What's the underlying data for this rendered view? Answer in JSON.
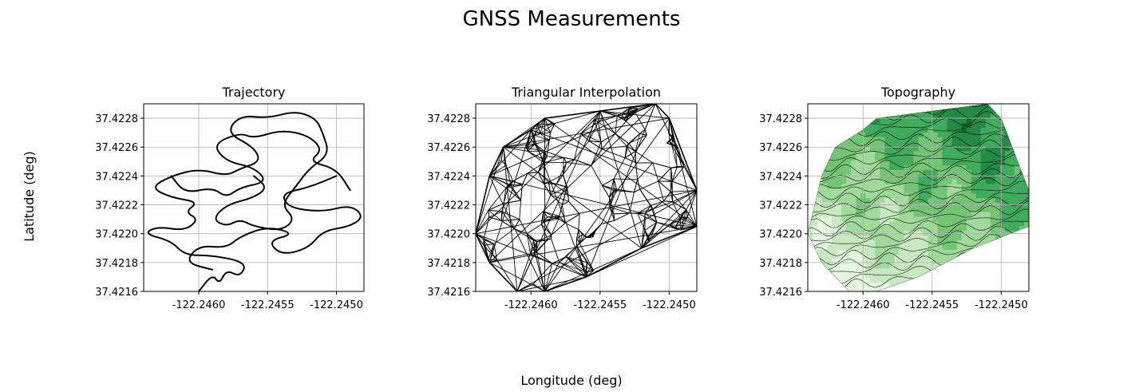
{
  "figure": {
    "suptitle": "GNSS Measurements",
    "xlabel": "Longitude (deg)",
    "ylabel": "Latitude (deg)"
  },
  "chart_data": [
    {
      "type": "line",
      "title": "Trajectory",
      "xlim": [
        -122.2464,
        -122.2448
      ],
      "ylim": [
        37.4216,
        37.4229
      ],
      "xticks": [
        -122.246,
        -122.2455,
        -122.245
      ],
      "yticks": [
        37.4216,
        37.4218,
        37.422,
        37.4222,
        37.4224,
        37.4226,
        37.4228
      ],
      "xtick_labels": [
        "-122.2460",
        "-122.2455",
        "-122.2450"
      ],
      "ytick_labels": [
        "37.4216",
        "37.4218",
        "37.4220",
        "37.4222",
        "37.4224",
        "37.4226",
        "37.4228"
      ],
      "grid": true,
      "series": [
        {
          "color": "#000000",
          "points": [
            [
              -122.246,
              37.4216
            ],
            [
              -122.2459,
              37.42172
            ],
            [
              -122.24585,
              37.42165
            ],
            [
              -122.2458,
              37.42175
            ],
            [
              -122.2457,
              37.4217
            ],
            [
              -122.24565,
              37.4218
            ],
            [
              -122.2459,
              37.42185
            ],
            [
              -122.2461,
              37.42185
            ],
            [
              -122.2462,
              37.42195
            ],
            [
              -122.2464,
              37.422
            ],
            [
              -122.2463,
              37.42205
            ],
            [
              -122.2461,
              37.42202
            ],
            [
              -122.246,
              37.4221
            ],
            [
              -122.2461,
              37.42215
            ],
            [
              -122.246,
              37.42222
            ],
            [
              -122.2462,
              37.42225
            ],
            [
              -122.24635,
              37.42232
            ],
            [
              -122.2462,
              37.4224
            ],
            [
              -122.246,
              37.42245
            ],
            [
              -122.2458,
              37.4224
            ],
            [
              -122.2457,
              37.42245
            ],
            [
              -122.24555,
              37.4225
            ],
            [
              -122.2456,
              37.4226
            ],
            [
              -122.2458,
              37.4227
            ],
            [
              -122.2457,
              37.42282
            ],
            [
              -122.2455,
              37.4228
            ],
            [
              -122.2453,
              37.42285
            ],
            [
              -122.24515,
              37.4228
            ],
            [
              -122.2451,
              37.4227
            ],
            [
              -122.24505,
              37.42255
            ],
            [
              -122.2452,
              37.42245
            ],
            [
              -122.2453,
              37.42232
            ],
            [
              -122.2454,
              37.4222
            ],
            [
              -122.2453,
              37.4221
            ],
            [
              -122.2454,
              37.42202
            ],
            [
              -122.2456,
              37.42205
            ],
            [
              -122.2457,
              37.4221
            ],
            [
              -122.2458,
              37.42205
            ],
            [
              -122.2459,
              37.4221
            ],
            [
              -122.2458,
              37.4222
            ],
            [
              -122.2456,
              37.42225
            ],
            [
              -122.2455,
              37.42232
            ],
            [
              -122.2456,
              37.4224
            ]
          ]
        },
        {
          "color": "#000000",
          "points": [
            [
              -122.245,
              37.4224
            ],
            [
              -122.2452,
              37.42232
            ],
            [
              -122.2454,
              37.42228
            ],
            [
              -122.24535,
              37.42218
            ],
            [
              -122.2451,
              37.42215
            ],
            [
              -122.2449,
              37.4222
            ],
            [
              -122.2448,
              37.42212
            ],
            [
              -122.2449,
              37.42205
            ],
            [
              -122.2451,
              37.42202
            ],
            [
              -122.2452,
              37.4219
            ],
            [
              -122.2454,
              37.42185
            ],
            [
              -122.2455,
              37.42195
            ],
            [
              -122.2453,
              37.422
            ],
            [
              -122.2455,
              37.42205
            ],
            [
              -122.2457,
              37.42198
            ],
            [
              -122.2458,
              37.4219
            ],
            [
              -122.246,
              37.42192
            ],
            [
              -122.2461,
              37.4218
            ],
            [
              -122.2459,
              37.42175
            ]
          ]
        },
        {
          "color": "#000000",
          "points": [
            [
              -122.2462,
              37.4224
            ],
            [
              -122.2461,
              37.42228
            ],
            [
              -122.2459,
              37.42232
            ],
            [
              -122.2458,
              37.42225
            ],
            [
              -122.2457,
              37.42232
            ],
            [
              -122.2455,
              37.42236
            ],
            [
              -122.2456,
              37.42246
            ],
            [
              -122.2458,
              37.4225
            ],
            [
              -122.2459,
              37.42262
            ],
            [
              -122.2457,
              37.4227
            ],
            [
              -122.2456,
              37.42266
            ],
            [
              -122.2454,
              37.42272
            ],
            [
              -122.2452,
              37.42268
            ],
            [
              -122.2451,
              37.42258
            ],
            [
              -122.2452,
              37.4225
            ],
            [
              -122.245,
              37.42245
            ],
            [
              -122.2449,
              37.4223
            ]
          ]
        }
      ]
    },
    {
      "type": "line",
      "title": "Triangular Interpolation",
      "xlim": [
        -122.2464,
        -122.2448
      ],
      "ylim": [
        37.4216,
        37.4229
      ],
      "xticks": [
        -122.246,
        -122.2455,
        -122.245
      ],
      "yticks": [
        37.4216,
        37.4218,
        37.422,
        37.4222,
        37.4224,
        37.4226,
        37.4228
      ],
      "xtick_labels": [
        "-122.2460",
        "-122.2455",
        "-122.2450"
      ],
      "ytick_labels": [
        "37.4216",
        "37.4218",
        "37.4220",
        "37.4222",
        "37.4224",
        "37.4226",
        "37.4228"
      ],
      "grid": true,
      "mesh_color": "#000000",
      "hull": [
        [
          -122.2464,
          37.422
        ],
        [
          -122.2463,
          37.4224
        ],
        [
          -122.2462,
          37.4226
        ],
        [
          -122.246,
          37.42272
        ],
        [
          -122.2459,
          37.4228
        ],
        [
          -122.2455,
          37.42285
        ],
        [
          -122.2451,
          37.4229
        ],
        [
          -122.245,
          37.4228
        ],
        [
          -122.2448,
          37.4223
        ],
        [
          -122.2448,
          37.42205
        ],
        [
          -122.2452,
          37.4219
        ],
        [
          -122.2456,
          37.4217
        ],
        [
          -122.2459,
          37.4216
        ],
        [
          -122.2461,
          37.4216
        ],
        [
          -122.2463,
          37.4218
        ]
      ]
    },
    {
      "type": "heatmap",
      "title": "Topography",
      "xlim": [
        -122.2464,
        -122.2448
      ],
      "ylim": [
        37.4216,
        37.4229
      ],
      "xticks": [
        -122.246,
        -122.2455,
        -122.245
      ],
      "yticks": [
        37.4216,
        37.4218,
        37.422,
        37.4222,
        37.4224,
        37.4226,
        37.4228
      ],
      "xtick_labels": [
        "-122.2460",
        "-122.2455",
        "-122.2450"
      ],
      "ytick_labels": [
        "37.4216",
        "37.4218",
        "37.4220",
        "37.4222",
        "37.4224",
        "37.4226",
        "37.4228"
      ],
      "grid": true,
      "colormap": [
        "#e5f5e0",
        "#c7e9c0",
        "#a1d99b",
        "#74c476",
        "#41ab5d",
        "#238b45",
        "#006d2c"
      ],
      "contour_color": "#000000",
      "hull": [
        [
          -122.2464,
          37.422
        ],
        [
          -122.2463,
          37.4224
        ],
        [
          -122.2462,
          37.4226
        ],
        [
          -122.246,
          37.42272
        ],
        [
          -122.2459,
          37.4228
        ],
        [
          -122.2455,
          37.42285
        ],
        [
          -122.2451,
          37.4229
        ],
        [
          -122.245,
          37.4228
        ],
        [
          -122.2448,
          37.4223
        ],
        [
          -122.2448,
          37.42205
        ],
        [
          -122.2452,
          37.4219
        ],
        [
          -122.2456,
          37.4217
        ],
        [
          -122.2459,
          37.4216
        ],
        [
          -122.2461,
          37.4216
        ],
        [
          -122.2463,
          37.4218
        ]
      ]
    }
  ]
}
